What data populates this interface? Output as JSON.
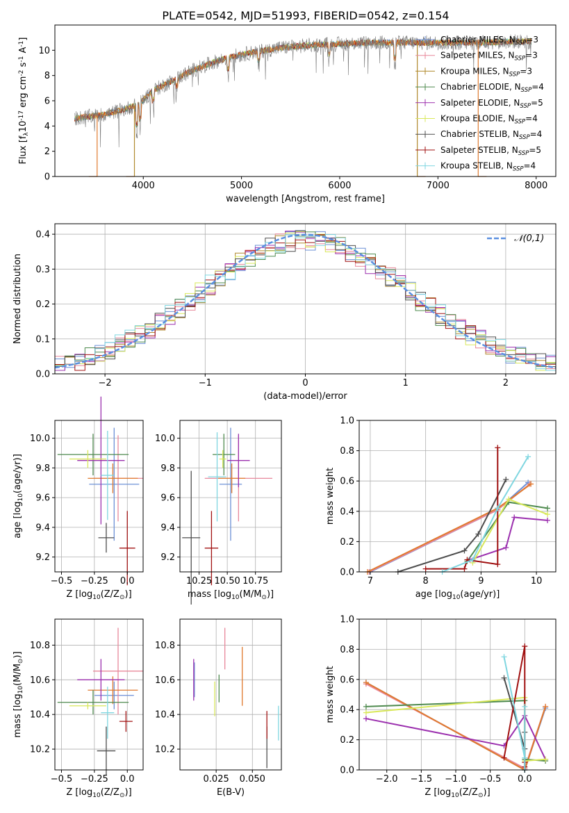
{
  "title": "PLATE=0542, MJD=51993, FIBERID=0542, z=0.154",
  "colors": {
    "Chabrier MILES": "#6b8fd6",
    "Salpeter MILES": "#e8879a",
    "Kroupa MILES": "#b0892c",
    "Chabrier ELODIE": "#4e8a4e",
    "Salpeter ELODIE": "#9b2fae",
    "Kroupa ELODIE": "#d9e85a",
    "Chabrier STELIB": "#4d4d4d",
    "Salpeter STELIB": "#a01010",
    "Kroupa STELIB": "#7fd6e0",
    "orange": "#e07a2e",
    "normal_curve": "#5a8fe0"
  },
  "chart_data": [
    {
      "type": "line",
      "id": "spectrum",
      "xlabel": "wavelength [Angstrom, rest frame]",
      "ylabel": "Flux [f$_\\lambda$10$^{-17}$ erg cm$^{-2}$ s$^{-1}$ A$^{-1}$]",
      "xlim": [
        3100,
        8200
      ],
      "ylim": [
        0,
        12
      ],
      "xticks": [
        4000,
        5000,
        6000,
        7000,
        8000
      ],
      "yticks": [
        0,
        2,
        4,
        6,
        8,
        10
      ],
      "grid": false,
      "legend_position": "right",
      "legend": [
        {
          "name": "Chabrier MILES",
          "sub_label": "SSP",
          "suffix": "=3"
        },
        {
          "name": "Salpeter MILES",
          "sub_label": "SSP",
          "suffix": "=3"
        },
        {
          "name": "Kroupa MILES",
          "sub_label": "SSP",
          "suffix": "=3"
        },
        {
          "name": "Chabrier ELODIE",
          "sub_label": "SSP",
          "suffix": "=4"
        },
        {
          "name": "Salpeter ELODIE",
          "sub_label": "SSP",
          "suffix": "=5"
        },
        {
          "name": "Kroupa ELODIE",
          "sub_label": "SSP",
          "suffix": "=4"
        },
        {
          "name": "Chabrier STELIB",
          "sub_label": "SSP",
          "suffix": "=4"
        },
        {
          "name": "Salpeter STELIB",
          "sub_label": "SSP",
          "suffix": "=5"
        },
        {
          "name": "Kroupa STELIB",
          "sub_label": "SSP",
          "suffix": "=4"
        }
      ],
      "continuum": [
        [
          3300,
          4.6
        ],
        [
          3400,
          4.7
        ],
        [
          3600,
          4.9
        ],
        [
          3800,
          5.3
        ],
        [
          3950,
          5.7
        ],
        [
          4100,
          6.8
        ],
        [
          4300,
          7.6
        ],
        [
          4500,
          8.4
        ],
        [
          4700,
          9.0
        ],
        [
          4900,
          9.5
        ],
        [
          5100,
          9.8
        ],
        [
          5400,
          10.2
        ],
        [
          5700,
          10.4
        ],
        [
          6000,
          10.5
        ],
        [
          6300,
          10.6
        ],
        [
          6600,
          10.6
        ],
        [
          7000,
          10.6
        ],
        [
          7400,
          10.6
        ],
        [
          7800,
          10.7
        ],
        [
          8000,
          10.7
        ]
      ],
      "data_range": [
        3300,
        7950
      ],
      "model_edges": [
        {
          "series": "Salpeter MILES",
          "x": 3530,
          "side": "left"
        },
        {
          "series": "Kroupa MILES",
          "x": 3910,
          "side": "left"
        },
        {
          "series": "Kroupa MILES",
          "x": 6790,
          "side": "right"
        },
        {
          "series": "Salpeter MILES",
          "x": 7410,
          "side": "right"
        }
      ]
    },
    {
      "type": "bar",
      "id": "residuals",
      "xlabel": "(data-model)/error",
      "ylabel": "Normed distribution",
      "xlim": [
        -2.5,
        2.5
      ],
      "ylim": [
        0,
        0.43
      ],
      "xticks": [
        -2,
        -1,
        0,
        1,
        2
      ],
      "yticks": [
        0.0,
        0.1,
        0.2,
        0.3,
        0.4
      ],
      "grid": true,
      "bin_width": 0.1,
      "legend_position": "top-right",
      "curve_label": "$\\mathcal{N}(0,1)$",
      "reference": "standard normal N(0,1) density"
    },
    {
      "type": "scatter",
      "id": "age-Z",
      "xlabel": "Z [log$_{10}$(Z/Z$_\\odot$)]",
      "ylabel": "age  [log$_{10}$(age/yr)]",
      "xlim": [
        -0.55,
        0.12
      ],
      "ylim": [
        9.1,
        10.12
      ],
      "xticks": [
        -0.5,
        -0.25,
        0.0
      ],
      "yticks": [
        9.2,
        9.4,
        9.6,
        9.8,
        10.0
      ],
      "grid": true,
      "points": [
        {
          "series": "Chabrier MILES",
          "x": -0.1,
          "y": 9.69,
          "xerr": 0.19,
          "yerr": 0.38
        },
        {
          "series": "Salpeter MILES",
          "x": -0.07,
          "y": 9.73,
          "xerr": 0.19,
          "yerr": 0.29
        },
        {
          "series": "orange",
          "x": -0.11,
          "y": 9.73,
          "xerr": 0.19,
          "yerr": 0.1
        },
        {
          "series": "Chabrier ELODIE",
          "x": -0.26,
          "y": 9.89,
          "xerr": 0.27,
          "yerr": 0.14
        },
        {
          "series": "Salpeter ELODIE",
          "x": -0.2,
          "y": 9.85,
          "xerr": 0.18,
          "yerr": 0.43
        },
        {
          "series": "Kroupa ELODIE",
          "x": -0.3,
          "y": 9.86,
          "xerr": 0.14,
          "yerr": 0.06
        },
        {
          "series": "Chabrier STELIB",
          "x": -0.16,
          "y": 9.33,
          "xerr": 0.06,
          "yerr": 0.1
        },
        {
          "series": "Salpeter STELIB",
          "x": 0.0,
          "y": 9.26,
          "xerr": 0.06,
          "yerr": 0.25
        },
        {
          "series": "Kroupa STELIB",
          "x": -0.15,
          "y": 9.75,
          "xerr": 0.05,
          "yerr": 0.3
        }
      ]
    },
    {
      "type": "scatter",
      "id": "age-mass",
      "xlabel": "mass [log$_{10}$(M/M$_\\odot$)]",
      "ylabel": "",
      "xlim": [
        10.08,
        10.98
      ],
      "ylim": [
        9.1,
        10.12
      ],
      "xticks": [
        10.25,
        10.5,
        10.75
      ],
      "yticks": [
        9.2,
        9.4,
        9.6,
        9.8,
        10.0
      ],
      "grid": true,
      "points": [
        {
          "series": "Chabrier MILES",
          "x": 10.53,
          "y": 9.69,
          "xerr": 0.1,
          "yerr": 0.38
        },
        {
          "series": "Salpeter MILES",
          "x": 10.6,
          "y": 9.73,
          "xerr": 0.3,
          "yerr": 0.29
        },
        {
          "series": "orange",
          "x": 10.54,
          "y": 9.73,
          "xerr": 0.12,
          "yerr": 0.1
        },
        {
          "series": "Chabrier ELODIE",
          "x": 10.47,
          "y": 9.89,
          "xerr": 0.1,
          "yerr": 0.14
        },
        {
          "series": "Salpeter ELODIE",
          "x": 10.6,
          "y": 9.85,
          "xerr": 0.1,
          "yerr": 0.18
        },
        {
          "series": "Kroupa ELODIE",
          "x": 10.46,
          "y": 9.86,
          "xerr": 0.03,
          "yerr": 0.06
        },
        {
          "series": "Chabrier STELIB",
          "x": 10.18,
          "y": 9.33,
          "xerr": 0.08,
          "yerr": 0.45
        },
        {
          "series": "Salpeter STELIB",
          "x": 10.36,
          "y": 9.26,
          "xerr": 0.06,
          "yerr": 0.25
        },
        {
          "series": "Kroupa STELIB",
          "x": 10.41,
          "y": 9.74,
          "xerr": 0.08,
          "yerr": 0.3
        }
      ]
    },
    {
      "type": "line",
      "id": "mass-weight-age",
      "xlabel": "age  [log$_{10}$(age/yr)]",
      "ylabel": "mass weight",
      "xlim": [
        6.8,
        10.35
      ],
      "ylim": [
        0,
        1
      ],
      "xticks": [
        7,
        8,
        9,
        10
      ],
      "yticks": [
        0.0,
        0.2,
        0.4,
        0.6,
        0.8,
        1.0
      ],
      "grid": true,
      "series": [
        {
          "name": "Chabrier MILES",
          "x": [
            7.0,
            9.3,
            9.85
          ],
          "y": [
            0.0,
            0.41,
            0.59
          ]
        },
        {
          "name": "Salpeter MILES",
          "x": [
            6.98,
            9.3,
            9.88
          ],
          "y": [
            0.0,
            0.41,
            0.58
          ]
        },
        {
          "name": "orange",
          "x": [
            6.95,
            9.3,
            9.9
          ],
          "y": [
            0.0,
            0.42,
            0.58
          ]
        },
        {
          "name": "Chabrier ELODIE",
          "x": [
            8.75,
            9.5,
            10.2
          ],
          "y": [
            0.07,
            0.46,
            0.42
          ]
        },
        {
          "name": "Salpeter ELODIE",
          "x": [
            8.8,
            9.45,
            9.6,
            10.2
          ],
          "y": [
            0.08,
            0.16,
            0.36,
            0.34
          ]
        },
        {
          "name": "Kroupa ELODIE",
          "x": [
            8.85,
            9.5,
            10.2
          ],
          "y": [
            0.06,
            0.48,
            0.38
          ]
        },
        {
          "name": "Chabrier STELIB",
          "x": [
            7.5,
            8.7,
            8.95,
            9.45
          ],
          "y": [
            0.0,
            0.14,
            0.25,
            0.61
          ]
        },
        {
          "name": "Salpeter STELIB",
          "x": [
            8.0,
            8.7,
            8.75,
            9.3,
            9.3
          ],
          "y": [
            0.02,
            0.02,
            0.08,
            0.05,
            0.82
          ]
        },
        {
          "name": "Kroupa STELIB",
          "x": [
            8.3,
            8.85,
            9.3,
            9.85
          ],
          "y": [
            0.0,
            0.08,
            0.42,
            0.76
          ]
        }
      ]
    },
    {
      "type": "scatter",
      "id": "mass-Z",
      "xlabel": "Z [log$_{10}$(Z/Z$_\\odot$)]",
      "ylabel": "mass [log$_{10}$(M/M$_\\odot$)]",
      "xlim": [
        -0.55,
        0.12
      ],
      "ylim": [
        10.08,
        10.95
      ],
      "xticks": [
        -0.5,
        -0.25,
        0.0
      ],
      "yticks": [
        10.2,
        10.4,
        10.6,
        10.8
      ],
      "grid": true,
      "points": [
        {
          "series": "Chabrier MILES",
          "x": -0.1,
          "y": 10.51,
          "xerr": 0.15,
          "yerr": 0.08
        },
        {
          "series": "Salpeter MILES",
          "x": -0.07,
          "y": 10.65,
          "xerr": 0.19,
          "yerr": 0.25
        },
        {
          "series": "orange",
          "x": -0.11,
          "y": 10.54,
          "xerr": 0.19,
          "yerr": 0.08
        },
        {
          "series": "Chabrier ELODIE",
          "x": -0.26,
          "y": 10.47,
          "xerr": 0.27,
          "yerr": 0.07
        },
        {
          "series": "Salpeter ELODIE",
          "x": -0.2,
          "y": 10.6,
          "xerr": 0.18,
          "yerr": 0.12
        },
        {
          "series": "Kroupa ELODIE",
          "x": -0.3,
          "y": 10.45,
          "xerr": 0.14,
          "yerr": 0.02
        },
        {
          "series": "Chabrier STELIB",
          "x": -0.16,
          "y": 10.19,
          "xerr": 0.07,
          "yerr": 0.14
        },
        {
          "series": "Salpeter STELIB",
          "x": -0.01,
          "y": 10.36,
          "xerr": 0.05,
          "yerr": 0.06
        },
        {
          "series": "Kroupa STELIB",
          "x": -0.15,
          "y": 10.41,
          "xerr": 0.05,
          "yerr": 0.15
        }
      ]
    },
    {
      "type": "scatter",
      "id": "mass-EBV",
      "xlabel": "E(B-V)",
      "ylabel": "",
      "xlim": [
        0.0,
        0.07
      ],
      "ylim": [
        10.08,
        10.95
      ],
      "xticks": [
        0.025,
        0.05
      ],
      "yticks": [
        10.2,
        10.4,
        10.6,
        10.8
      ],
      "grid": true,
      "points": [
        {
          "series": "Chabrier MILES",
          "x": 0.01,
          "y": 10.6,
          "xerr": 0.0,
          "yerr": 0.1
        },
        {
          "series": "Salpeter MILES",
          "x": 0.031,
          "y": 10.78,
          "xerr": 0.0,
          "yerr": 0.12
        },
        {
          "series": "orange",
          "x": 0.043,
          "y": 10.62,
          "xerr": 0.0,
          "yerr": 0.17
        },
        {
          "series": "Chabrier ELODIE",
          "x": 0.027,
          "y": 10.55,
          "xerr": 0.0,
          "yerr": 0.08
        },
        {
          "series": "Salpeter ELODIE",
          "x": 0.0095,
          "y": 10.6,
          "xerr": 0.0,
          "yerr": 0.12
        },
        {
          "series": "Kroupa ELODIE",
          "x": 0.024,
          "y": 10.49,
          "xerr": 0.0,
          "yerr": 0.1
        },
        {
          "series": "Chabrier STELIB",
          "x": 0.06,
          "y": 10.21,
          "xerr": 0.0,
          "yerr": 0.12
        },
        {
          "series": "Salpeter STELIB",
          "x": 0.06,
          "y": 10.34,
          "xerr": 0.0,
          "yerr": 0.08
        },
        {
          "series": "Kroupa STELIB",
          "x": 0.068,
          "y": 10.35,
          "xerr": 0.0,
          "yerr": 0.1
        }
      ]
    },
    {
      "type": "line",
      "id": "mass-weight-Z",
      "xlabel": "Z [log$_{10}$(Z/Z$_\\odot$)]",
      "ylabel": "mass weight",
      "xlim": [
        -2.4,
        0.45
      ],
      "ylim": [
        0,
        1
      ],
      "xticks": [
        -2.0,
        -1.5,
        -1.0,
        -0.5,
        0.0
      ],
      "yticks": [
        0.0,
        0.2,
        0.4,
        0.6,
        0.8,
        1.0
      ],
      "grid": true,
      "series": [
        {
          "name": "Chabrier MILES",
          "x": [
            -2.3,
            0.0,
            0.3
          ],
          "y": [
            0.58,
            0.0,
            0.41
          ]
        },
        {
          "name": "Salpeter MILES",
          "x": [
            -2.3,
            0.0,
            0.3
          ],
          "y": [
            0.57,
            0.01,
            0.42
          ]
        },
        {
          "name": "orange",
          "x": [
            -2.3,
            0.0,
            0.3
          ],
          "y": [
            0.58,
            0.0,
            0.42
          ]
        },
        {
          "name": "Chabrier ELODIE",
          "x": [
            -2.3,
            0.0,
            0.0,
            0.3
          ],
          "y": [
            0.42,
            0.46,
            0.07,
            0.06
          ]
        },
        {
          "name": "Salpeter ELODIE",
          "x": [
            -2.3,
            -0.3,
            0.0,
            0.3
          ],
          "y": [
            0.34,
            0.16,
            0.36,
            0.07
          ]
        },
        {
          "name": "Kroupa ELODIE",
          "x": [
            -2.3,
            0.0,
            0.0,
            0.3
          ],
          "y": [
            0.38,
            0.48,
            0.06,
            0.07
          ]
        },
        {
          "name": "Chabrier STELIB",
          "x": [
            -0.3,
            0.0,
            0.0,
            0.0
          ],
          "y": [
            0.61,
            0.14,
            0.25,
            0.0
          ]
        },
        {
          "name": "Salpeter STELIB",
          "x": [
            -0.3,
            0.0,
            0.0,
            0.0
          ],
          "y": [
            0.08,
            0.82,
            0.02,
            0.05
          ]
        },
        {
          "name": "Kroupa STELIB",
          "x": [
            -0.3,
            0.0,
            0.0,
            0.0
          ],
          "y": [
            0.75,
            0.08,
            0.42,
            0.0
          ]
        }
      ]
    }
  ]
}
